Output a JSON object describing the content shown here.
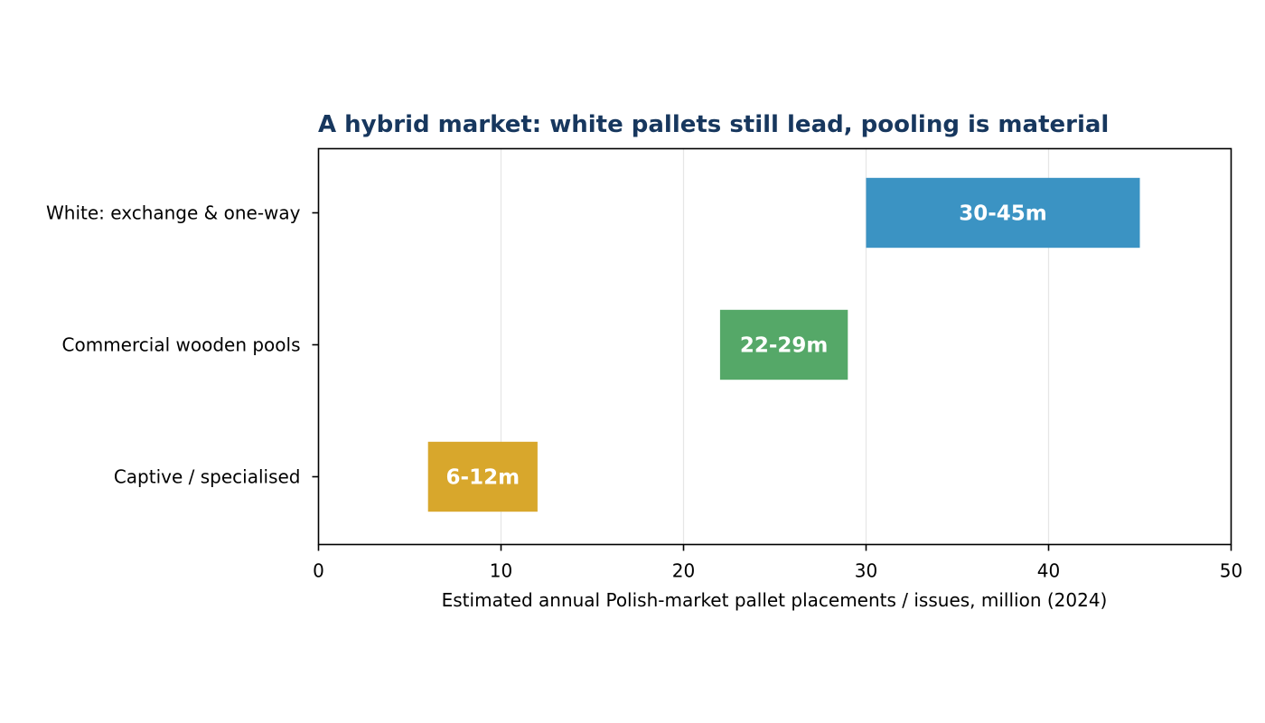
{
  "chart_data": {
    "type": "bar",
    "orientation": "horizontal",
    "title": "A hybrid market: white pallets still lead, pooling is material",
    "xlabel": "Estimated annual Polish-market pallet placements / issues, million (2024)",
    "ylabel": "",
    "xlim": [
      0,
      50
    ],
    "xticks": [
      0,
      10,
      20,
      30,
      40,
      50
    ],
    "grid": "vertical",
    "legend": "none",
    "categories": [
      "White: exchange & one-way",
      "Commercial wooden pools",
      "Captive / specialised"
    ],
    "ranges": [
      {
        "category": "White: exchange & one-way",
        "low": 30,
        "high": 45,
        "label": "30-45m",
        "color": "#3b93c3"
      },
      {
        "category": "Commercial wooden pools",
        "low": 22,
        "high": 29,
        "label": "22-29m",
        "color": "#55a868"
      },
      {
        "category": "Captive / specialised",
        "low": 6,
        "high": 12,
        "label": "6-12m",
        "color": "#d8a72c"
      }
    ],
    "colors": {
      "title": "#17375e",
      "grid": "#e6e6e6",
      "axis": "#000000"
    }
  }
}
